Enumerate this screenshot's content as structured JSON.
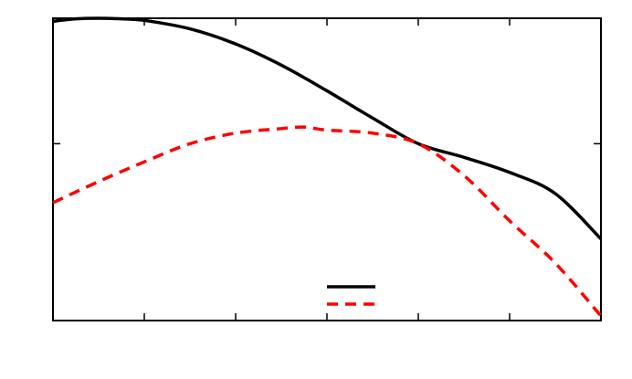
{
  "chart_data": {
    "type": "line",
    "title": "",
    "xlabel": "",
    "ylabel": "",
    "xlim": [
      0,
      6
    ],
    "ylim": [
      0,
      1
    ],
    "xticks": [
      0,
      1,
      2,
      3,
      4,
      5,
      6
    ],
    "yticks": [
      0,
      0.585,
      1
    ],
    "grid": false,
    "legend": {
      "placement": "bottom-center",
      "entries": [
        "",
        ""
      ]
    },
    "series": [
      {
        "color": "#000000",
        "style": "solid",
        "x": [
          0,
          0.25,
          0.5,
          0.75,
          1,
          1.5,
          2,
          2.5,
          3,
          3.5,
          4,
          4.5,
          5,
          5.5,
          6
        ],
        "y": [
          0.99,
          0.998,
          1.0,
          0.998,
          0.993,
          0.965,
          0.915,
          0.845,
          0.76,
          0.67,
          0.585,
          0.54,
          0.49,
          0.42,
          0.27
        ]
      },
      {
        "color": "#ff0000",
        "style": "dashed",
        "x": [
          0,
          0.5,
          1,
          1.5,
          2,
          2.5,
          2.75,
          3,
          3.5,
          4,
          4.5,
          5,
          5.5,
          6
        ],
        "y": [
          0.39,
          0.46,
          0.525,
          0.585,
          0.62,
          0.635,
          0.64,
          0.63,
          0.62,
          0.585,
          0.48,
          0.33,
          0.19,
          0.015
        ]
      }
    ]
  }
}
